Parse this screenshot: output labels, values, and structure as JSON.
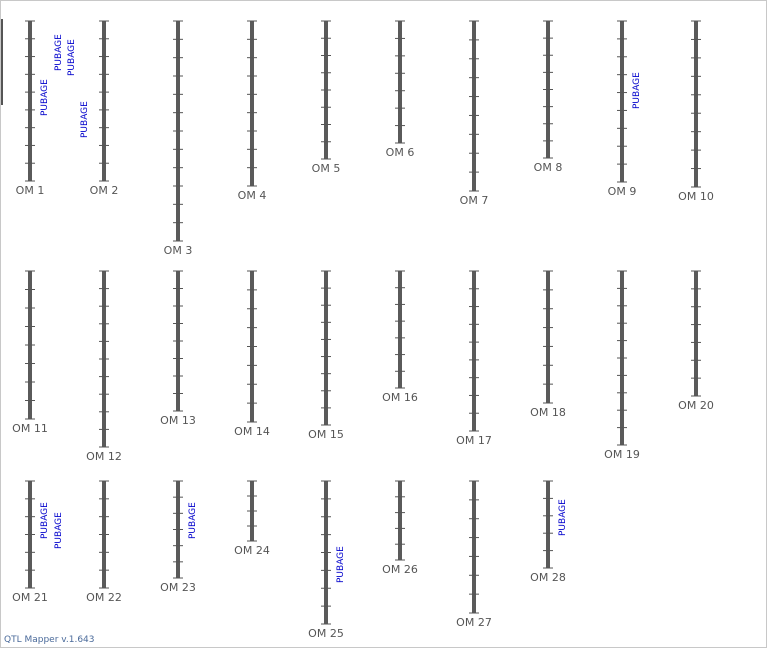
{
  "app": {
    "version_text": "QTL Mapper v.1.643"
  },
  "colors": {
    "bar": "#5a5a5a",
    "tick": "#555555",
    "label": "#555555",
    "qtl": "#0000cc"
  },
  "chromosomes": [
    {
      "name": "OM 1",
      "len": 160,
      "ticks": 8,
      "qtls": [
        "PUBAGE",
        "PUBAGE",
        "PUBAGE",
        "PUBAGE"
      ]
    },
    {
      "name": "OM 2",
      "len": 160,
      "ticks": 8,
      "qtls": []
    },
    {
      "name": "OM 3",
      "len": 220,
      "ticks": 11,
      "qtls": []
    },
    {
      "name": "OM 4",
      "len": 165,
      "ticks": 8,
      "qtls": []
    },
    {
      "name": "OM 5",
      "len": 138,
      "ticks": 7,
      "qtls": []
    },
    {
      "name": "OM 6",
      "len": 122,
      "ticks": 6,
      "qtls": []
    },
    {
      "name": "OM 7",
      "len": 170,
      "ticks": 8,
      "qtls": []
    },
    {
      "name": "OM 8",
      "len": 137,
      "ticks": 7,
      "qtls": []
    },
    {
      "name": "OM 9",
      "len": 161,
      "ticks": 8,
      "qtls": [
        "PUBAGE"
      ]
    },
    {
      "name": "OM 10",
      "len": 166,
      "ticks": 8,
      "qtls": []
    },
    {
      "name": "OM 11",
      "len": 148,
      "ticks": 7,
      "qtls": []
    },
    {
      "name": "OM 12",
      "len": 176,
      "ticks": 9,
      "qtls": []
    },
    {
      "name": "OM 13",
      "len": 140,
      "ticks": 7,
      "qtls": []
    },
    {
      "name": "OM 14",
      "len": 151,
      "ticks": 7,
      "qtls": []
    },
    {
      "name": "OM 15",
      "len": 154,
      "ticks": 8,
      "qtls": []
    },
    {
      "name": "OM 16",
      "len": 117,
      "ticks": 6,
      "qtls": []
    },
    {
      "name": "OM 17",
      "len": 160,
      "ticks": 8,
      "qtls": []
    },
    {
      "name": "OM 18",
      "len": 132,
      "ticks": 6,
      "qtls": []
    },
    {
      "name": "OM 19",
      "len": 174,
      "ticks": 9,
      "qtls": []
    },
    {
      "name": "OM 20",
      "len": 125,
      "ticks": 6,
      "qtls": []
    },
    {
      "name": "OM 21",
      "len": 107,
      "ticks": 5,
      "qtls": [
        "PUBAGE",
        "PUBAGE"
      ]
    },
    {
      "name": "OM 22",
      "len": 107,
      "ticks": 5,
      "qtls": []
    },
    {
      "name": "OM 23",
      "len": 97,
      "ticks": 5,
      "qtls": [
        "PUBAGE"
      ]
    },
    {
      "name": "OM 24",
      "len": 60,
      "ticks": 3,
      "qtls": []
    },
    {
      "name": "OM 25",
      "len": 143,
      "ticks": 7,
      "qtls": [
        "PUBAGE"
      ]
    },
    {
      "name": "OM 26",
      "len": 79,
      "ticks": 4,
      "qtls": []
    },
    {
      "name": "OM 27",
      "len": 132,
      "ticks": 6,
      "qtls": []
    },
    {
      "name": "OM 28",
      "len": 87,
      "ticks": 4,
      "qtls": [
        "PUBAGE"
      ]
    }
  ]
}
